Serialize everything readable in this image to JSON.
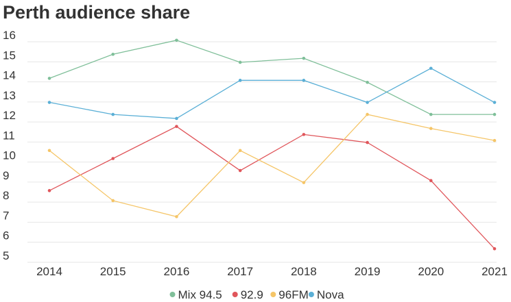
{
  "chart_data": {
    "type": "line",
    "title": "Perth audience share",
    "x": [
      "2014",
      "2015",
      "2016",
      "2017",
      "2018",
      "2019",
      "2020",
      "2021"
    ],
    "ylim": [
      5,
      16
    ],
    "yticks": [
      5,
      6,
      7,
      8,
      9,
      10,
      11,
      12,
      13,
      14,
      15,
      16
    ],
    "grid": true,
    "legend_position": "bottom",
    "series": [
      {
        "name": "Mix 94.5",
        "color": "#7fbf99",
        "values": [
          13.8,
          15.0,
          15.7,
          14.6,
          14.8,
          13.6,
          12.0,
          12.0
        ]
      },
      {
        "name": "92.9",
        "color": "#e0565b",
        "values": [
          8.2,
          9.8,
          11.4,
          9.2,
          11.0,
          10.6,
          8.7,
          5.3
        ]
      },
      {
        "name": "96FM",
        "color": "#f5c567",
        "values": [
          10.2,
          7.7,
          6.9,
          10.2,
          8.6,
          12.0,
          11.3,
          10.7
        ]
      },
      {
        "name": "Nova",
        "color": "#5aafd6",
        "values": [
          12.6,
          12.0,
          11.8,
          13.7,
          13.7,
          12.6,
          14.3,
          12.6
        ]
      }
    ]
  }
}
